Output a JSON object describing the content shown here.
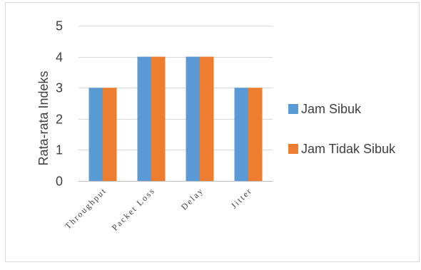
{
  "chart_data": {
    "type": "bar",
    "categories": [
      "Throughput",
      "Packet Loss",
      "Delay",
      "Jitter"
    ],
    "series": [
      {
        "name": "Jam Sibuk",
        "values": [
          3,
          4,
          4,
          3
        ],
        "color": "#5B9BD5"
      },
      {
        "name": "Jam Tidak Sibuk",
        "values": [
          3,
          4,
          4,
          3
        ],
        "color": "#ED7D31"
      }
    ],
    "title": "",
    "xlabel": "",
    "ylabel": "Rata-rata Indeks",
    "ylim": [
      0,
      5
    ],
    "yticks": [
      "0",
      "1",
      "2",
      "3",
      "4",
      "5"
    ],
    "grid": true,
    "legend_position": "right"
  }
}
